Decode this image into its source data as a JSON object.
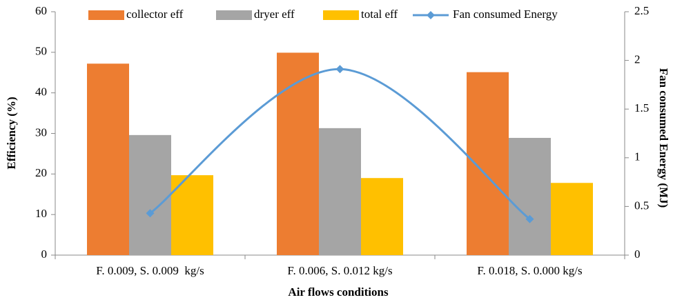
{
  "chart_data": {
    "type": "bar",
    "categories": [
      "F. 0.009, S. 0.009  kg/s",
      "F. 0.006, S. 0.012 kg/s",
      "F. 0.018, S. 0.000 kg/s"
    ],
    "series": [
      {
        "name": "collector eff",
        "color": "#ED7D31",
        "values": [
          47.2,
          49.9,
          45.1
        ]
      },
      {
        "name": "dryer eff",
        "color": "#A5A5A5",
        "values": [
          29.6,
          31.3,
          28.9
        ]
      },
      {
        "name": "total eff",
        "color": "#FFC000",
        "values": [
          19.7,
          19.0,
          17.8
        ]
      },
      {
        "name": "Fan consumed Energy",
        "color": "#5B9BD5",
        "type": "line",
        "axis": "y2",
        "values": [
          0.43,
          1.91,
          0.37
        ]
      }
    ],
    "x_label": "Air flows conditions",
    "y_label": "Efficiency (%)",
    "y2_label": "Fan consumed Energy (MJ)",
    "ylim": [
      0,
      60
    ],
    "yticks": [
      0,
      10,
      20,
      30,
      40,
      50,
      60
    ],
    "y2lim": [
      0,
      2.5
    ],
    "y2ticks": [
      0,
      0.5,
      1,
      1.5,
      2,
      2.5
    ],
    "legend": "top"
  }
}
